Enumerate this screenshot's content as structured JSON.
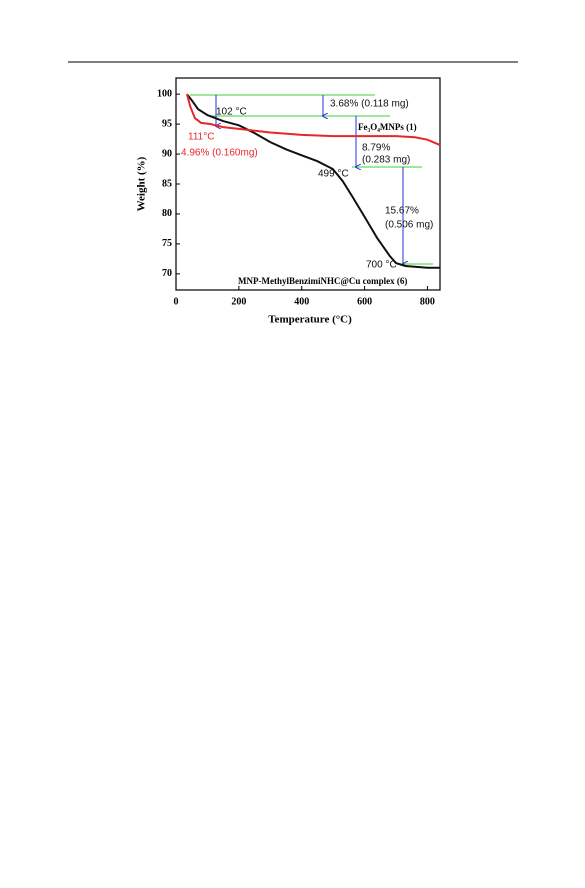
{
  "chart_data": {
    "type": "line",
    "xlabel": "Temperature (°C)",
    "ylabel": "Weight (%)",
    "xlim": [
      0,
      840
    ],
    "ylim": [
      67.3,
      102.7
    ],
    "xticks": [
      0,
      200,
      400,
      600,
      800
    ],
    "yticks": [
      70,
      75,
      80,
      85,
      90,
      95,
      100
    ],
    "series": [
      {
        "name": "MNP-MethylBenzimiNHC@Cu complex (6)",
        "color": "#111111",
        "x": [
          35,
          50,
          70,
          100,
          150,
          200,
          250,
          300,
          350,
          400,
          450,
          499,
          530,
          560,
          600,
          640,
          680,
          700,
          730,
          800,
          840
        ],
        "values": [
          100,
          99,
          97.5,
          96.5,
          95.5,
          94.8,
          93.5,
          92,
          90.8,
          89.8,
          88.8,
          87.5,
          85.5,
          83,
          79.5,
          76,
          73,
          71.8,
          71.3,
          71,
          71
        ]
      },
      {
        "name": "Fe₃O₄MNPs (1)",
        "color": "#e8262a",
        "x": [
          35,
          45,
          60,
          80,
          111,
          150,
          200,
          300,
          400,
          500,
          600,
          700,
          760,
          800,
          840
        ],
        "values": [
          100,
          98,
          96,
          95.2,
          95,
          94.5,
          94.2,
          93.6,
          93.2,
          93,
          93,
          93,
          92.8,
          92.4,
          91.5
        ]
      }
    ],
    "annotations": [
      "102 °C",
      "3.68% (0.118 mg)",
      "111°C",
      "4.96% (0.160mg)",
      "8.79%",
      "(0.283 mg)",
      "499 °C",
      "15.67%",
      "(0.506 mg)",
      "700 °C"
    ]
  }
}
